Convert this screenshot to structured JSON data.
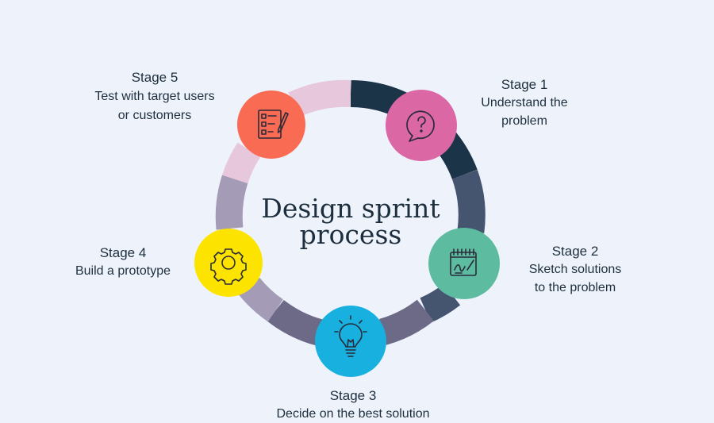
{
  "title": {
    "line1": "Design sprint",
    "line2": "process"
  },
  "colors": {
    "background": "#eef3fb",
    "text": "#1d2f3e",
    "stage1": "#db67a5",
    "stage2": "#5dbca0",
    "stage3": "#17b0df",
    "stage4": "#fce300",
    "stage5": "#f96b52"
  },
  "stages": [
    {
      "id": "stage1",
      "label": "Stage 1",
      "description": "Understand the\nproblem",
      "icon": "question-bubble-icon",
      "color": "#db67a5"
    },
    {
      "id": "stage2",
      "label": "Stage 2",
      "description": "Sketch solutions\nto the problem",
      "icon": "sketch-pad-icon",
      "color": "#5dbca0"
    },
    {
      "id": "stage3",
      "label": "Stage 3",
      "description": "Decide on the best solution",
      "icon": "lightbulb-icon",
      "color": "#17b0df"
    },
    {
      "id": "stage4",
      "label": "Stage 4",
      "description": "Build a prototype",
      "icon": "gear-icon",
      "color": "#fce300"
    },
    {
      "id": "stage5",
      "label": "Stage 5",
      "description": "Test with target users\nor customers",
      "icon": "checklist-icon",
      "color": "#f96b52"
    }
  ]
}
